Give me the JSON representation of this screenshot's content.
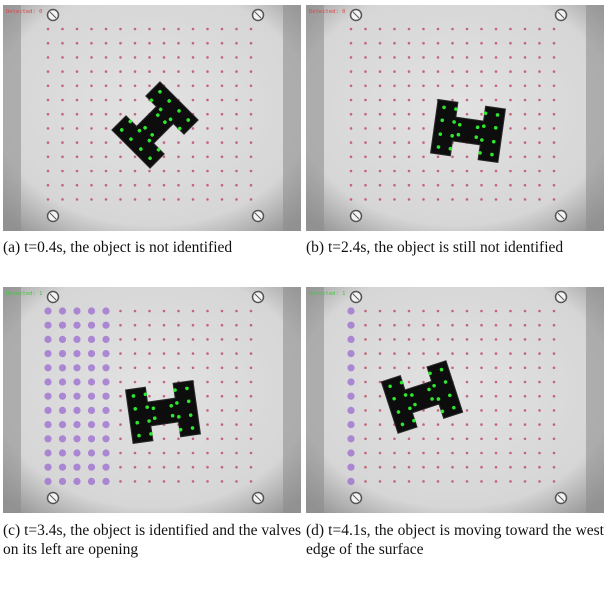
{
  "figure": {
    "panels": [
      {
        "id": "a",
        "caption": "(a) t=0.4s, the object is not identified",
        "status_text": "Detected: 0",
        "status_color": "#d94848",
        "object": {
          "rotation_deg": -45,
          "identified": false
        },
        "open_valve_columns": 0
      },
      {
        "id": "b",
        "caption": "(b) t=2.4s, the object is still not identified",
        "status_text": "Detected: 0",
        "status_color": "#d94848",
        "object": {
          "rotation_deg": 8,
          "identified": false
        },
        "open_valve_columns": 0
      },
      {
        "id": "c",
        "caption": "(c) t=3.4s, the object is identified and the valves on its left are opening",
        "status_text": "Detected: 1",
        "status_color": "#3ec83e",
        "object": {
          "rotation_deg": -8,
          "identified": true
        },
        "open_valve_columns": 5
      },
      {
        "id": "d",
        "caption": "(d) t=4.1s, the object is moving toward the west edge of the surface",
        "status_text": "Detected: 1",
        "status_color": "#3ec83e",
        "object": {
          "rotation_deg": -18,
          "identified": true
        },
        "open_valve_columns": 1
      }
    ],
    "colors": {
      "surface": "#d6d6d6",
      "grid_dot": "#c0506a",
      "open_valve": "#9a6ad0",
      "object": "#0d0d0d",
      "marker": "#2ee82e"
    }
  }
}
